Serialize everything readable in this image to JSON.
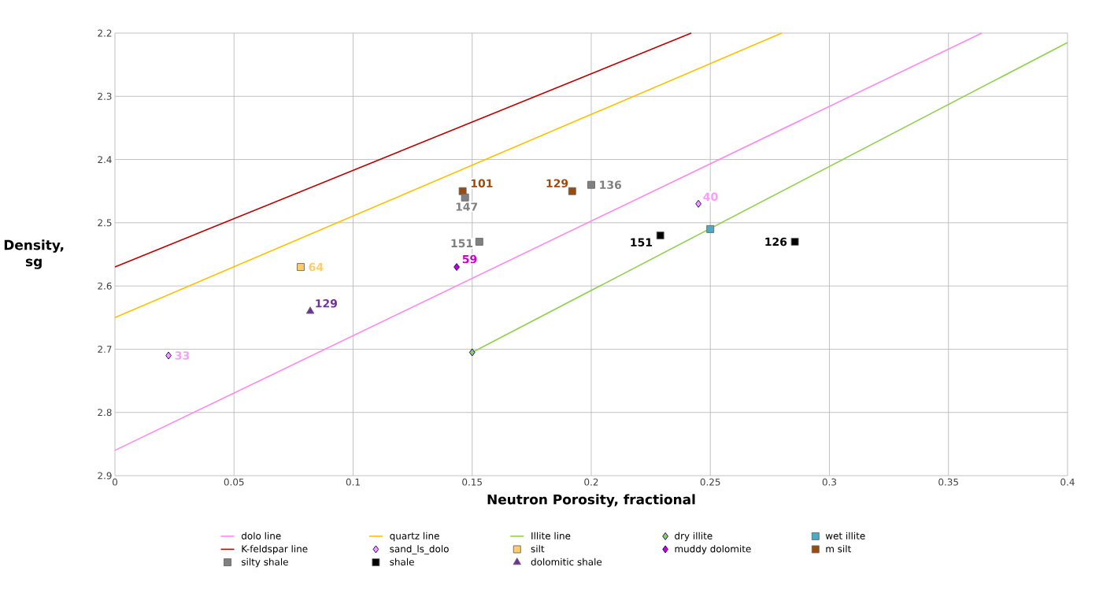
{
  "chart_data": {
    "type": "scatter",
    "xlabel": "Neutron Porosity, fractional",
    "ylabel": "Density, sg",
    "xlim": [
      0,
      0.4
    ],
    "ylim": [
      2.9,
      2.2
    ],
    "xticks": [
      0,
      0.05,
      0.1,
      0.15,
      0.2,
      0.25,
      0.3,
      0.35,
      0.4
    ],
    "yticks": [
      2.2,
      2.3,
      2.4,
      2.5,
      2.6,
      2.7,
      2.8,
      2.9
    ],
    "grid": true,
    "legend": "bottom",
    "series": [
      {
        "name": "dolo line",
        "type": "line",
        "marker": "none",
        "color": "#ff88ee",
        "x": [
          0,
          0.364
        ],
        "values": [
          2.86,
          2.2
        ]
      },
      {
        "name": "quartz line",
        "type": "line",
        "marker": "none",
        "color": "#ffc000",
        "x": [
          0,
          0.28
        ],
        "values": [
          2.65,
          2.2
        ]
      },
      {
        "name": "Illite line",
        "type": "line",
        "marker": "none",
        "color": "#92d050",
        "x": [
          0.15,
          0.4
        ],
        "values": [
          2.705,
          2.215
        ]
      },
      {
        "name": "dry illite",
        "marker": "diamond",
        "color": "#92d050",
        "x": [
          0.15
        ],
        "values": [
          2.705
        ]
      },
      {
        "name": "wet illite",
        "marker": "square",
        "color": "#4bacc6",
        "x": [
          0.25
        ],
        "values": [
          2.51
        ]
      },
      {
        "name": "K-feldspar line",
        "type": "line",
        "marker": "none",
        "color": "#c00000",
        "x": [
          0,
          0.242
        ],
        "values": [
          2.57,
          2.2
        ]
      },
      {
        "name": "sand_ls_dolo",
        "marker": "diamond",
        "color": "#ff99ff",
        "x": [
          0.0225,
          0.245
        ],
        "values": [
          2.71,
          2.47
        ]
      },
      {
        "name": "silt",
        "marker": "square",
        "color": "#ffcc66",
        "x": [
          0.078
        ],
        "values": [
          2.57
        ]
      },
      {
        "name": "muddy dolomite",
        "marker": "diamond",
        "color": "#cc00cc",
        "x": [
          0.1435
        ],
        "values": [
          2.57
        ]
      },
      {
        "name": "m silt",
        "marker": "square",
        "color": "#9c4a0c",
        "x": [
          0.146,
          0.192
        ],
        "values": [
          2.45,
          2.45
        ]
      },
      {
        "name": "silty shale",
        "marker": "square",
        "color": "#808080",
        "x": [
          0.147,
          0.2,
          0.153
        ],
        "values": [
          2.46,
          2.44,
          2.53
        ]
      },
      {
        "name": "shale",
        "marker": "square",
        "color": "#000000",
        "x": [
          0.229,
          0.2855
        ],
        "values": [
          2.52,
          2.53
        ]
      },
      {
        "name": "dolomitic shale",
        "marker": "triangle",
        "color": "#7030a0",
        "x": [
          0.082
        ],
        "values": [
          2.64
        ]
      }
    ],
    "annotations": [
      {
        "text": "33",
        "x": 0.0225,
        "y": 2.71
      },
      {
        "text": "40",
        "x": 0.245,
        "y": 2.47
      },
      {
        "text": "64",
        "x": 0.078,
        "y": 2.57
      },
      {
        "text": "59",
        "x": 0.1435,
        "y": 2.57
      },
      {
        "text": "101",
        "x": 0.146,
        "y": 2.45
      },
      {
        "text": "129",
        "x": 0.192,
        "y": 2.45
      },
      {
        "text": "147",
        "x": 0.147,
        "y": 2.46
      },
      {
        "text": "136",
        "x": 0.2,
        "y": 2.44
      },
      {
        "text": "151",
        "x": 0.153,
        "y": 2.53
      },
      {
        "text": "151",
        "x": 0.229,
        "y": 2.52
      },
      {
        "text": "126",
        "x": 0.2855,
        "y": 2.53
      },
      {
        "text": "129",
        "x": 0.082,
        "y": 2.64
      }
    ]
  }
}
